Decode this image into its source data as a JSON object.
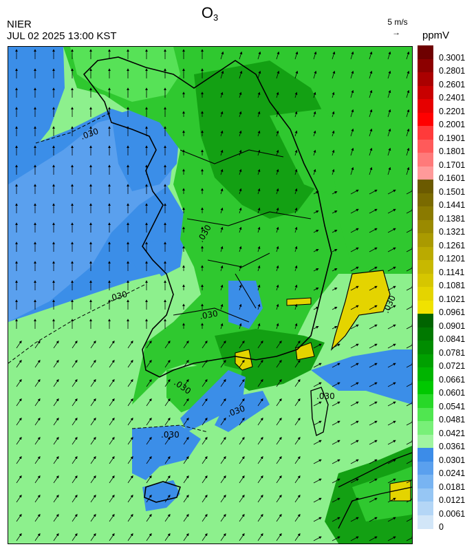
{
  "header": {
    "title_main": "O",
    "title_sub": "3",
    "org": "NIER",
    "datetime": "JUL 02 2025 13:00 KST",
    "vector_scale_label": "5 m/s",
    "vector_arrow": "→",
    "unit": "ppmV"
  },
  "map": {
    "contour_labels": [
      ".030",
      ".030",
      ".030",
      ".030",
      ".030",
      ".030",
      ".030",
      ".030",
      ".030",
      ".090"
    ],
    "wind_direction": "south-southwest to north",
    "colors": {
      "sea_low": "#3b8ee8",
      "sea_mid": "#8cf08c",
      "land_green": "#2fc82f",
      "land_dark": "#13a013",
      "high_yellow": "#d9c510",
      "coast_line": "#000000"
    }
  },
  "colorbar": {
    "levels": [
      {
        "label": "0.3001",
        "color": "#6e0000"
      },
      {
        "label": "0.2801",
        "color": "#8c0000"
      },
      {
        "label": "0.2601",
        "color": "#aa0000"
      },
      {
        "label": "0.2401",
        "color": "#c80000"
      },
      {
        "label": "0.2201",
        "color": "#e60000"
      },
      {
        "label": "0.2001",
        "color": "#ff0000"
      },
      {
        "label": "0.1901",
        "color": "#ff3a3a"
      },
      {
        "label": "0.1801",
        "color": "#ff5a5a"
      },
      {
        "label": "0.1701",
        "color": "#ff7a7a"
      },
      {
        "label": "0.1601",
        "color": "#ff9a9a"
      },
      {
        "label": "0.1501",
        "color": "#6b5a00"
      },
      {
        "label": "0.1441",
        "color": "#7a6a00"
      },
      {
        "label": "0.1381",
        "color": "#8a7a00"
      },
      {
        "label": "0.1321",
        "color": "#9a8a00"
      },
      {
        "label": "0.1261",
        "color": "#aa9a00"
      },
      {
        "label": "0.1201",
        "color": "#baaa00"
      },
      {
        "label": "0.1141",
        "color": "#c8b800"
      },
      {
        "label": "0.1081",
        "color": "#d6c600"
      },
      {
        "label": "0.1021",
        "color": "#e4d400"
      },
      {
        "label": "0.0961",
        "color": "#f0e200"
      },
      {
        "label": "0.0901",
        "color": "#006400"
      },
      {
        "label": "0.0841",
        "color": "#007800"
      },
      {
        "label": "0.0781",
        "color": "#008c00"
      },
      {
        "label": "0.0721",
        "color": "#00a000"
      },
      {
        "label": "0.0661",
        "color": "#00b400"
      },
      {
        "label": "0.0601",
        "color": "#00c800"
      },
      {
        "label": "0.0541",
        "color": "#28d828"
      },
      {
        "label": "0.0481",
        "color": "#50e650"
      },
      {
        "label": "0.0421",
        "color": "#78f078"
      },
      {
        "label": "0.0361",
        "color": "#a0f5a0"
      },
      {
        "label": "0.0301",
        "color": "#3c8ce8"
      },
      {
        "label": "0.0241",
        "color": "#5aa0ee"
      },
      {
        "label": "0.0181",
        "color": "#78b4f2"
      },
      {
        "label": "0.0121",
        "color": "#96c6f4"
      },
      {
        "label": "0.0061",
        "color": "#b4d6f6"
      },
      {
        "label": "0",
        "color": "#d2e6f8"
      }
    ]
  }
}
